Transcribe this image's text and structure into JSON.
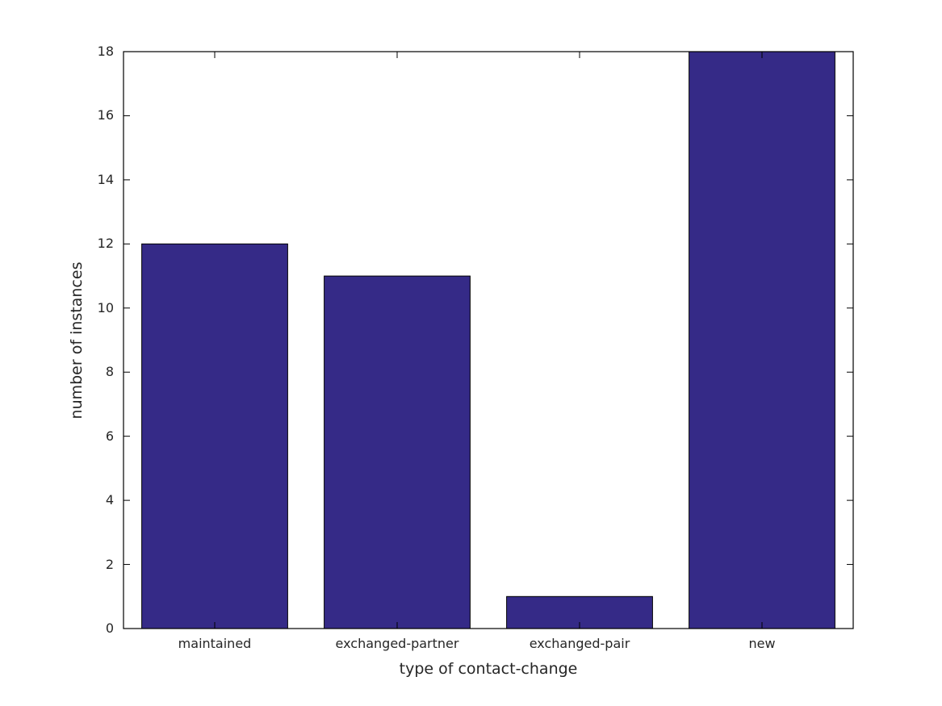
{
  "figure": {
    "background_color": "#ffffff"
  },
  "chart_data": {
    "type": "bar",
    "categories": [
      "maintained",
      "exchanged-partner",
      "exchanged-pair",
      "new"
    ],
    "values": [
      12,
      11,
      1,
      18
    ],
    "title": "",
    "xlabel": "type of contact-change",
    "ylabel": "number of instances",
    "ylim": [
      0,
      18
    ],
    "yticks": [
      0,
      2,
      4,
      6,
      8,
      10,
      12,
      14,
      16,
      18
    ],
    "bar_width_fraction": 0.8,
    "bar_color": "#352a87",
    "bar_edge_color": "#000000",
    "axis_color": "#000000",
    "text_color": "#262626",
    "grid": false,
    "legend": null,
    "tick_direction": "in",
    "box": true
  }
}
